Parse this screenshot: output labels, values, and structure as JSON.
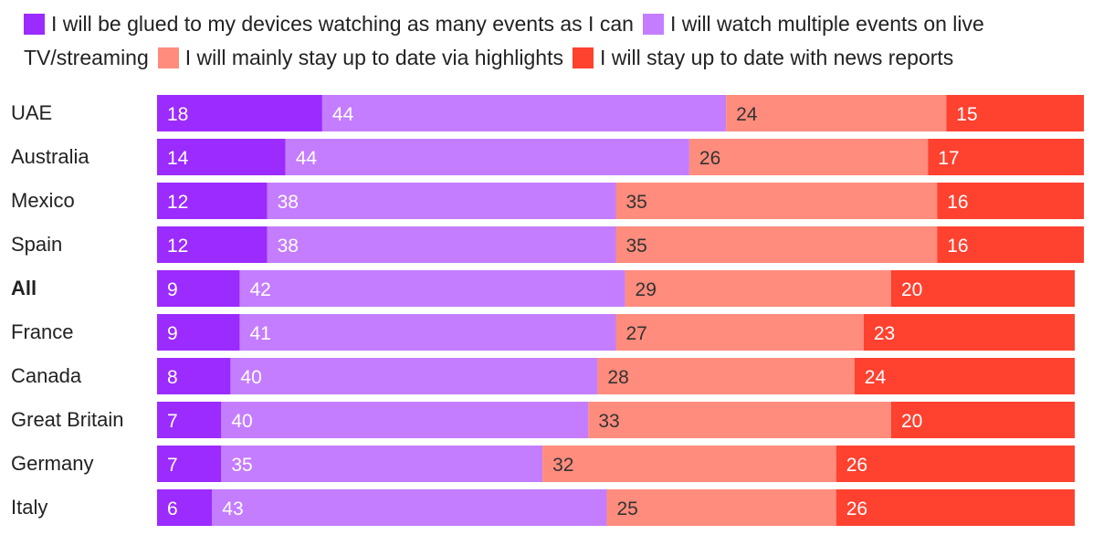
{
  "chart_data": {
    "type": "bar",
    "orientation": "horizontal",
    "stacked": true,
    "title": "",
    "xlabel": "",
    "ylabel": "",
    "xlim": [
      0,
      100
    ],
    "legend_position": "top",
    "categories": [
      "UAE",
      "Australia",
      "Mexico",
      "Spain",
      "All",
      "France",
      "Canada",
      "Great Britain",
      "Germany",
      "Italy"
    ],
    "highlight_category": "All",
    "series": [
      {
        "name": "I will be glued to my devices watching as many events as I can",
        "color": "#9b2bff",
        "label_color": "#ffffff",
        "values": [
          18,
          14,
          12,
          12,
          9,
          9,
          8,
          7,
          7,
          6
        ]
      },
      {
        "name": "I will watch multiple events on live TV/streaming",
        "color": "#c47dff",
        "label_color": "#ffffff",
        "values": [
          44,
          44,
          38,
          38,
          42,
          41,
          40,
          40,
          35,
          43
        ]
      },
      {
        "name": "I will mainly stay up to date via highlights",
        "color": "#ff8c7d",
        "label_color": "#333333",
        "values": [
          24,
          26,
          35,
          35,
          29,
          27,
          28,
          33,
          32,
          25
        ]
      },
      {
        "name": "I will stay up to date with news reports",
        "color": "#ff4130",
        "label_color": "#ffffff",
        "values": [
          15,
          17,
          16,
          16,
          20,
          23,
          24,
          20,
          26,
          26
        ]
      }
    ]
  }
}
